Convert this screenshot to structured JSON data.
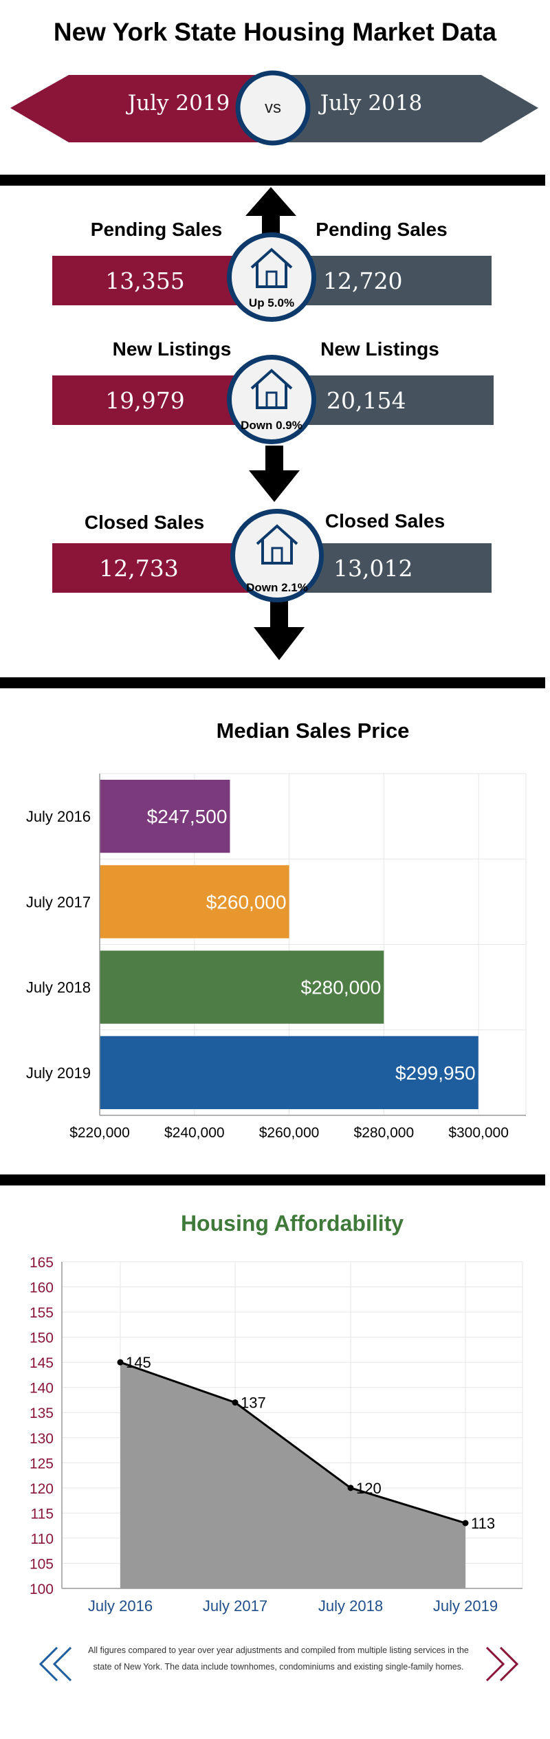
{
  "title": "New York State Housing Market Data",
  "compare": {
    "left": "July 2019",
    "vs": "vs",
    "right": "July 2018"
  },
  "metrics": [
    {
      "label_left": "Pending Sales",
      "label_right": "Pending Sales",
      "current": "13,355",
      "previous": "12,720",
      "change": "Up 5.0%",
      "direction": "up"
    },
    {
      "label_left": "New Listings",
      "label_right": "New Listings",
      "current": "19,979",
      "previous": "20,154",
      "change": "Down 0.9%",
      "direction": "down"
    },
    {
      "label_left": "Closed Sales",
      "label_right": "Closed Sales",
      "current": "12,733",
      "previous": "13,012",
      "change": "Down 2.1%",
      "direction": "down"
    }
  ],
  "icons": {
    "house": "house-icon",
    "up_arrow": "up-arrow-icon",
    "down_arrow": "down-arrow-icon",
    "prev": "double-chevron-left-icon",
    "next": "double-chevron-right-icon"
  },
  "colors": {
    "current": "#8a1538",
    "previous": "#46535e",
    "ring": "#0e3a6b"
  },
  "chart_data": [
    {
      "type": "bar",
      "orientation": "horizontal",
      "title": "Median Sales Price",
      "categories": [
        "July 2016",
        "July 2017",
        "July 2018",
        "July 2019"
      ],
      "values": [
        247500,
        260000,
        280000,
        299950
      ],
      "value_labels": [
        "$247,500",
        "$260,000",
        "$280,000",
        "$299,950"
      ],
      "bar_colors": [
        "#7b3a7b",
        "#e8962e",
        "#4e7d45",
        "#1f5e9e"
      ],
      "xlim": [
        220000,
        310000
      ],
      "x_ticks": [
        "$220,000",
        "$240,000",
        "$260,000",
        "$280,000",
        "$300,000"
      ],
      "grid": true
    },
    {
      "type": "area",
      "title": "Housing Affordability",
      "categories": [
        "July 2016",
        "July 2017",
        "July 2018",
        "July 2019"
      ],
      "values": [
        145,
        137,
        120,
        113
      ],
      "value_labels": [
        "145",
        "137",
        "120",
        "113"
      ],
      "ylim": [
        100,
        165
      ],
      "y_ticks": [
        "165",
        "160",
        "155",
        "150",
        "145",
        "140",
        "135",
        "130",
        "125",
        "120",
        "115",
        "110",
        "105",
        "100"
      ],
      "fill_color": "#999999",
      "grid": true
    }
  ],
  "footnote": {
    "line1": "All figures compared to year over year adjustments and compiled from multiple listing services in the",
    "line2": "state of New York.  The data include townhomes, condominiums and existing single-family homes."
  }
}
